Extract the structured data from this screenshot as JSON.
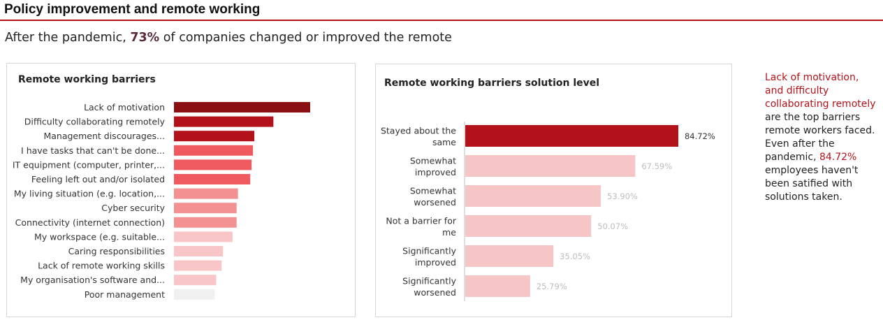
{
  "page": {
    "title": "Policy improvement and remote working",
    "subtitle_pre": "After the pandemic, ",
    "subtitle_highlight": "73%",
    "subtitle_post": " of companies changed or improved the remote"
  },
  "commentary": {
    "highlight1": "Lack of motivation, and difficulty collaborating remotely",
    "text1": " are the top barriers remote workers faced. Even after the pandemic, ",
    "highlight2": "84.72%",
    "text2": " employees haven't been satified with solutions taken."
  },
  "chart_data": [
    {
      "type": "bar",
      "orientation": "horizontal",
      "title": "Remote working barriers",
      "categories": [
        "Lack of motivation",
        "Difficulty collaborating remotely",
        "Management discourages...",
        "I have tasks that can't be done...",
        "IT equipment (computer, printer,...",
        "Feeling left out and/or isolated",
        "My living situation (e.g. location,...",
        "Cyber security",
        "Connectivity (internet connection)",
        "My workspace (e.g. suitable...",
        "Caring responsibilities",
        "Lack of remote working skills",
        "My organisation's software and...",
        "Poor management"
      ],
      "values": [
        100,
        73,
        59,
        58,
        57,
        56,
        47,
        46,
        46,
        43,
        36,
        35,
        31,
        30
      ],
      "colors": [
        "#8b1014",
        "#b3121a",
        "#b3121a",
        "#ef5a5e",
        "#ef5a5e",
        "#ef5a5e",
        "#f39192",
        "#f39192",
        "#f39192",
        "#f9c6c7",
        "#f9c6c7",
        "#f9c6c7",
        "#f9c6c7",
        "#f0f0f0"
      ],
      "xlim": [
        0,
        100
      ],
      "grid": false,
      "legend": "none"
    },
    {
      "type": "bar",
      "orientation": "horizontal",
      "title": "Remote working barriers solution level",
      "categories": [
        [
          "Stayed about the",
          "same"
        ],
        [
          "Somewhat",
          "improved"
        ],
        [
          "Somewhat",
          "worsened"
        ],
        [
          "Not a barrier for",
          "me"
        ],
        [
          "Significantly",
          "improved"
        ],
        [
          "Significantly",
          "worsened"
        ]
      ],
      "values": [
        84.72,
        67.59,
        53.9,
        50.07,
        35.05,
        25.79
      ],
      "data_labels": [
        "84.72%",
        "67.59%",
        "53.90%",
        "50.07%",
        "35.05%",
        "25.79%"
      ],
      "colors": [
        "#b3121a",
        "#f6c5c6",
        "#f6c5c6",
        "#f6c5c6",
        "#f6c5c6",
        "#f6c5c6"
      ],
      "label_colors": [
        "#333333",
        "#bdbdbd",
        "#bdbdbd",
        "#bdbdbd",
        "#bdbdbd",
        "#bdbdbd"
      ],
      "xlim": [
        0,
        100
      ],
      "grid": false,
      "legend": "none"
    }
  ]
}
